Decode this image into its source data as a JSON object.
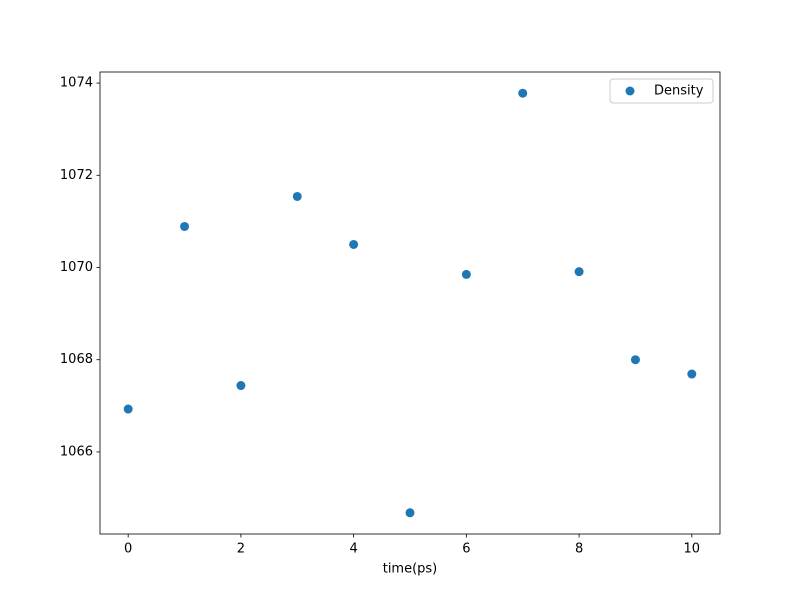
{
  "chart_data": {
    "type": "scatter",
    "x_label": "time(ps)",
    "series": [
      {
        "name": "Density",
        "color": "#1f77b4",
        "x": [
          0,
          1,
          2,
          3,
          4,
          5,
          6,
          7,
          8,
          9,
          10
        ],
        "values": [
          1066.93,
          1070.89,
          1067.44,
          1071.54,
          1070.5,
          1064.68,
          1069.85,
          1073.78,
          1069.91,
          1068.0,
          1067.69
        ]
      }
    ],
    "xlim": [
      -0.5,
      10.5
    ],
    "xticks": [
      0,
      2,
      4,
      6,
      8,
      10
    ],
    "ylim": [
      1064.22,
      1074.24
    ],
    "yticks": [
      1066,
      1068,
      1070,
      1072,
      1074
    ],
    "legend": "upper right",
    "grid": false
  }
}
